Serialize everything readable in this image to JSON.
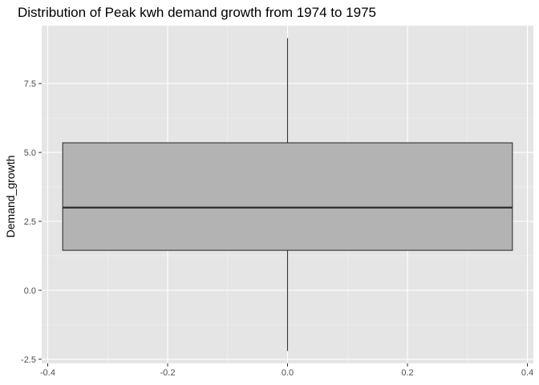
{
  "chart_data": {
    "type": "boxplot",
    "title": "Distribution of Peak kwh demand growth from 1974 to 1975",
    "xlabel": "",
    "ylabel": "Demand_growth",
    "xlim": [
      -0.41,
      0.41
    ],
    "ylim": [
      -2.65,
      9.6
    ],
    "x_ticks": [
      -0.4,
      -0.2,
      0.0,
      0.2,
      0.4
    ],
    "x_tick_labels": [
      "-0.4",
      "-0.2",
      "0.0",
      "0.2",
      "0.4"
    ],
    "y_ticks": [
      -2.5,
      0.0,
      2.5,
      5.0,
      7.5
    ],
    "y_tick_labels": [
      "-2.5",
      "0.0",
      "2.5",
      "5.0",
      "7.5"
    ],
    "box": {
      "x_min": -0.375,
      "x_max": 0.375,
      "whisker_low": -2.2,
      "q1": 1.45,
      "median": 3.0,
      "q3": 5.35,
      "whisker_high": 9.15
    },
    "grid": true,
    "colors": {
      "panel_background": "#e5e5e5",
      "grid_major": "#ffffff",
      "grid_minor": "#f2f2f2",
      "box_fill": "#b3b3b3",
      "box_line": "#333333",
      "tick_label": "#4d4d4d"
    }
  }
}
